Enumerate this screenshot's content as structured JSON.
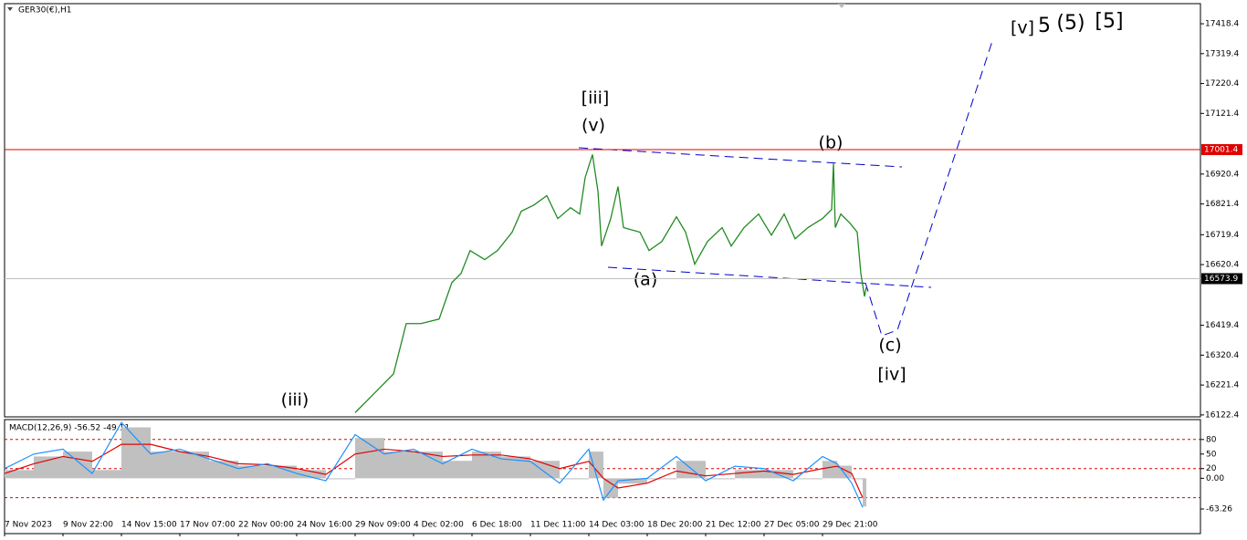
{
  "chart_data": {
    "type": "line",
    "symbol_label": "GER30(€),H1",
    "x": [
      192,
      203,
      213,
      220,
      228,
      238,
      245,
      250,
      255,
      263,
      270,
      278,
      283,
      290,
      297,
      303,
      310,
      315,
      318,
      322,
      325,
      327,
      332,
      336,
      339,
      348,
      353,
      360,
      368,
      373,
      378,
      385,
      393,
      398,
      405,
      413,
      420,
      427,
      433,
      440,
      448,
      453,
      454,
      455,
      458,
      463,
      467,
      469,
      471,
      472
    ],
    "values": [
      16130,
      16197,
      16258,
      16425,
      16425,
      16440,
      16561,
      16591,
      16667,
      16637,
      16667,
      16728,
      16797,
      16818,
      16849,
      16773,
      16809,
      16788,
      16909,
      16985,
      16864,
      16682,
      16773,
      16879,
      16743,
      16728,
      16667,
      16697,
      16779,
      16728,
      16622,
      16697,
      16743,
      16682,
      16743,
      16788,
      16718,
      16788,
      16706,
      16743,
      16773,
      16803,
      16955,
      16743,
      16788,
      16758,
      16728,
      16591,
      16515,
      16545
    ],
    "color": "#228b22",
    "xlim": [
      0,
      655
    ],
    "xticks": [
      {
        "value": 0,
        "label": "7 Nov 2023"
      },
      {
        "value": 32,
        "label": "9 Nov 22:00"
      },
      {
        "value": 64,
        "label": "14 Nov 15:00"
      },
      {
        "value": 96,
        "label": "17 Nov 07:00"
      },
      {
        "value": 128,
        "label": "22 Nov 00:00"
      },
      {
        "value": 160,
        "label": "24 Nov 16:00"
      },
      {
        "value": 192,
        "label": "29 Nov 09:00"
      },
      {
        "value": 224,
        "label": "4 Dec 02:00"
      },
      {
        "value": 256,
        "label": "6 Dec 18:00"
      },
      {
        "value": 288,
        "label": "11 Dec 11:00"
      },
      {
        "value": 320,
        "label": "14 Dec 03:00"
      },
      {
        "value": 352,
        "label": "18 Dec 20:00"
      },
      {
        "value": 384,
        "label": "21 Dec 12:00"
      },
      {
        "value": 416,
        "label": "27 Dec 05:00"
      },
      {
        "value": 448,
        "label": "29 Dec 21:00"
      }
    ],
    "ylim": [
      16116,
      17485
    ],
    "yticks": [
      17418.4,
      17319.4,
      17220.4,
      17121.4,
      16920.4,
      16821.4,
      16719.4,
      16620.4,
      16419.4,
      16320.4,
      16221.4,
      16122.4
    ],
    "hlines": [
      {
        "value": 17001.4,
        "color": "#e00000"
      },
      {
        "value": 16573.9,
        "color": "#c0c0c0"
      }
    ],
    "annotations": [
      "[iii]",
      "(v)",
      "(b)",
      "(a)",
      "(c)",
      "[iv]",
      "(iii)",
      "[v]",
      "5",
      "(5)",
      "[5]"
    ],
    "macd": {
      "label": "MACD(12,26,9) -56.52 -49.11",
      "x": [
        0,
        16,
        32,
        48,
        64,
        80,
        96,
        112,
        128,
        144,
        160,
        176,
        192,
        208,
        224,
        240,
        256,
        272,
        288,
        304,
        320,
        328,
        336,
        352,
        368,
        384,
        400,
        416,
        432,
        448,
        456,
        464,
        470
      ],
      "histogram": [
        17,
        45,
        55,
        17,
        105,
        55,
        55,
        36,
        26,
        26,
        17,
        -2,
        83,
        55,
        55,
        36,
        55,
        45,
        36,
        -2,
        55,
        -40,
        -11,
        -2,
        36,
        -2,
        17,
        17,
        -2,
        36,
        26,
        -2,
        -58
      ],
      "signal": [
        10,
        30,
        45,
        35,
        70,
        70,
        55,
        45,
        30,
        28,
        20,
        8,
        50,
        60,
        55,
        45,
        48,
        48,
        40,
        20,
        35,
        0,
        -20,
        -10,
        15,
        5,
        10,
        15,
        8,
        20,
        25,
        10,
        -40
      ],
      "line": [
        20,
        50,
        60,
        10,
        115,
        50,
        60,
        40,
        20,
        30,
        10,
        -5,
        90,
        50,
        60,
        30,
        60,
        40,
        35,
        -10,
        60,
        -45,
        -5,
        0,
        45,
        -5,
        25,
        20,
        -5,
        45,
        30,
        -10,
        -60
      ],
      "histogram_color": "#c0c0c0",
      "signal_color": "#e00000",
      "line_color": "#1e90ff",
      "ylim": [
        -114,
        121
      ],
      "yticks": [
        80,
        50,
        {
          "value": 0,
          "label": "0.00"
        },
        20,
        -63.26
      ],
      "levels": [
        80,
        20,
        -40
      ]
    }
  }
}
